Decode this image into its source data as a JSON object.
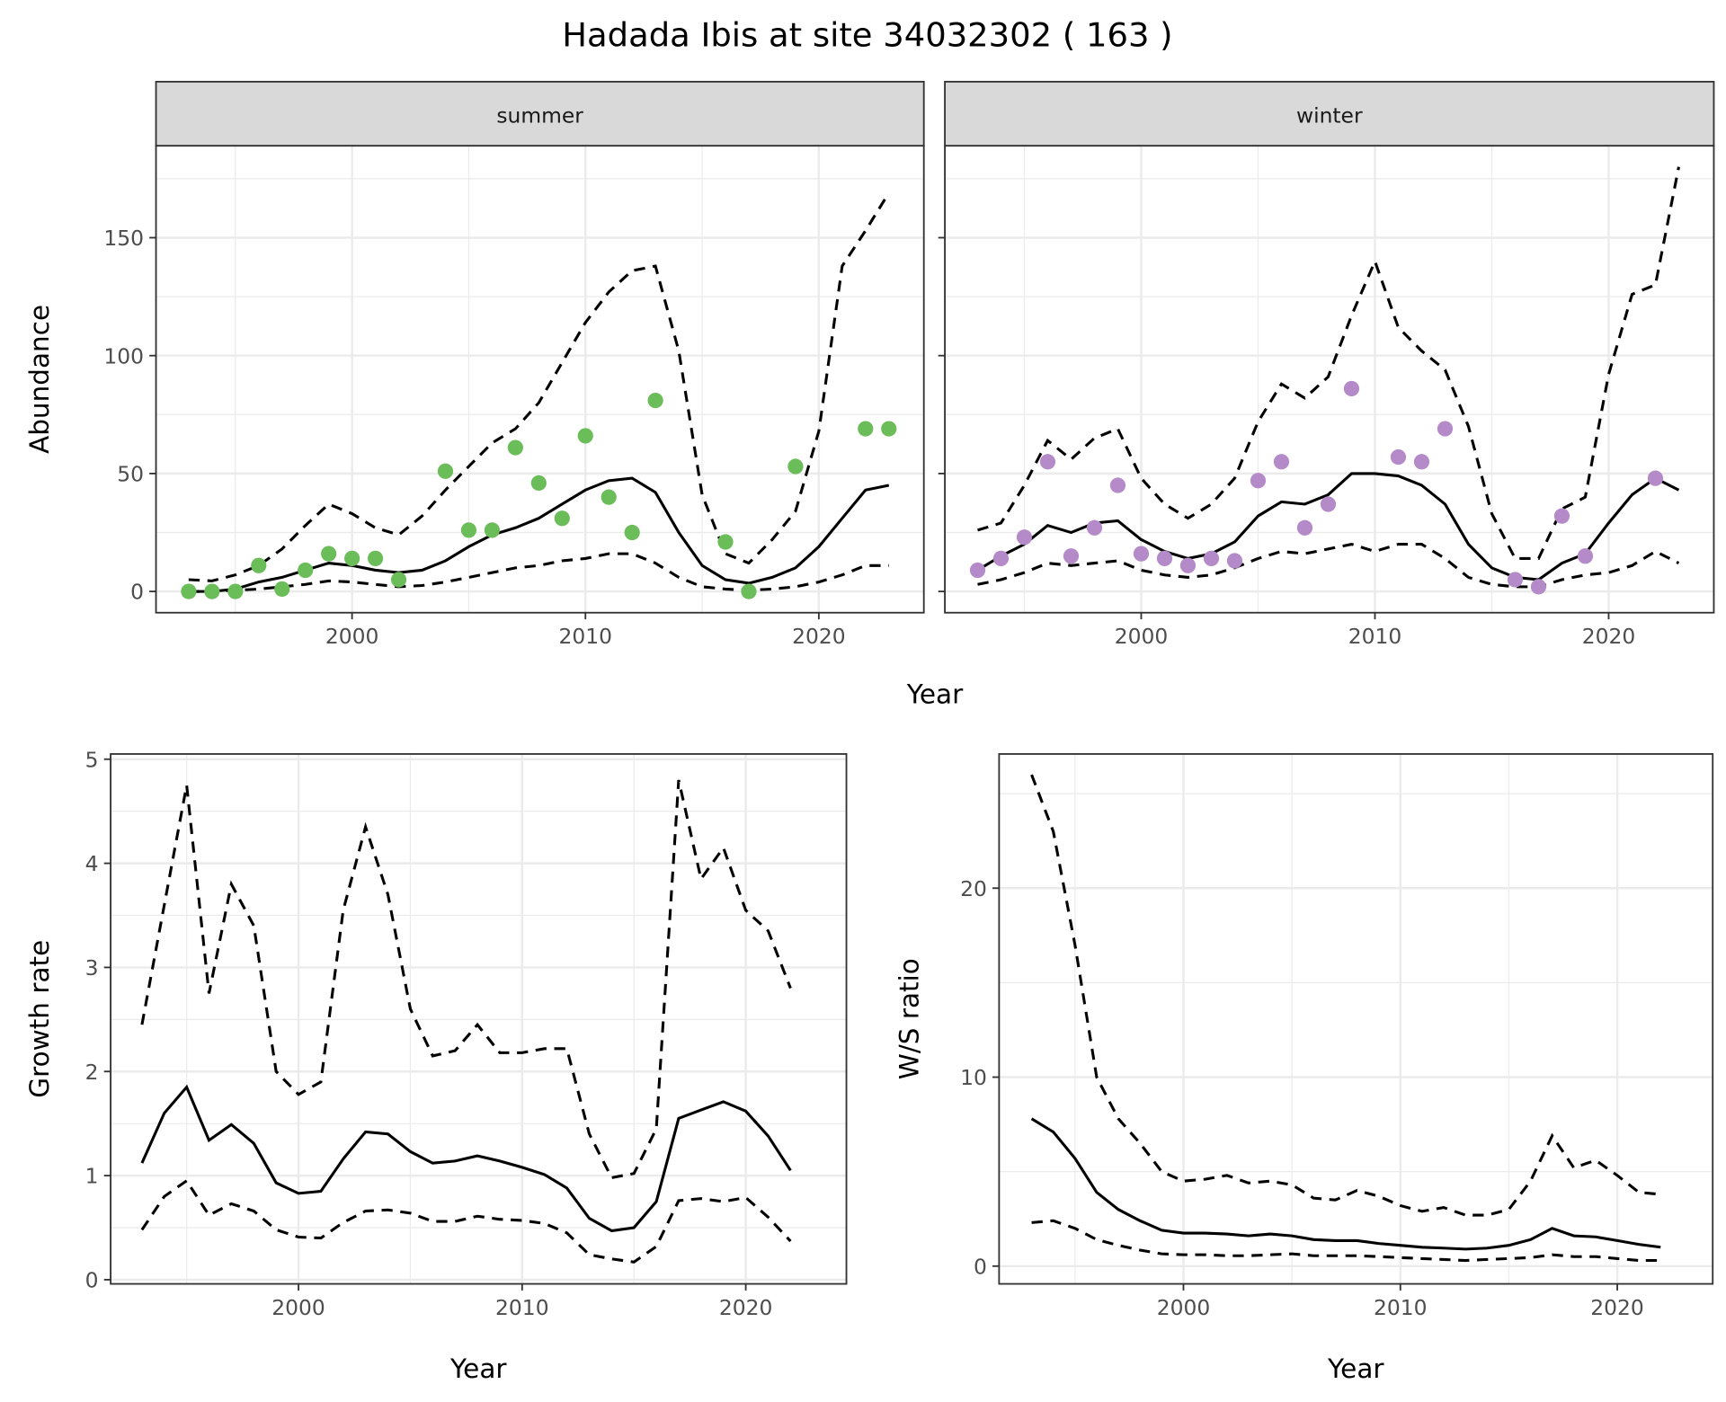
{
  "title": "Hadada Ibis at site 34032302 ( 163 )",
  "colors": {
    "summer_points": "#6bbd5a",
    "winter_points": "#b48ac8",
    "strip_bg": "#d9d9d9",
    "grid": "#ebebeb",
    "line": "#000000"
  },
  "chart_data": [
    {
      "type": "line+scatter",
      "facet": "summer",
      "xlabel": "Year",
      "ylabel": "Abundance",
      "xlim": [
        1991.6,
        2024.5
      ],
      "ylim": [
        -9,
        189
      ],
      "x_ticks": [
        2000,
        2010,
        2020
      ],
      "y_ticks": [
        0,
        50,
        100,
        150
      ],
      "grid": true,
      "points": {
        "x": [
          1993,
          1994,
          1995,
          1996,
          1997,
          1998,
          1999,
          2000,
          2001,
          2002,
          2004,
          2005,
          2006,
          2007,
          2008,
          2009,
          2010,
          2011,
          2012,
          2013,
          2016,
          2017,
          2019,
          2022,
          2023
        ],
        "y": [
          0,
          0,
          0,
          11,
          1,
          9,
          16,
          14,
          14,
          5,
          51,
          26,
          26,
          61,
          46,
          31,
          66,
          40,
          25,
          81,
          21,
          0,
          53,
          69,
          69
        ]
      },
      "years": [
        1993,
        1994,
        1995,
        1996,
        1997,
        1998,
        1999,
        2000,
        2001,
        2002,
        2003,
        2004,
        2005,
        2006,
        2007,
        2008,
        2009,
        2010,
        2011,
        2012,
        2013,
        2014,
        2015,
        2016,
        2017,
        2018,
        2019,
        2020,
        2021,
        2022,
        2023
      ],
      "mean": [
        0,
        0,
        1,
        4,
        6,
        9,
        12,
        11,
        9,
        8,
        9,
        13,
        19,
        24,
        27,
        31,
        37,
        43,
        47,
        48,
        42,
        25,
        11,
        5,
        3.5,
        6,
        10,
        19,
        31,
        43,
        45
      ],
      "upper": [
        5,
        4.5,
        7,
        11,
        18,
        28,
        37,
        33,
        27,
        24,
        32,
        43,
        53,
        63,
        69,
        80,
        97,
        114,
        127,
        136,
        138,
        102,
        41,
        16,
        12,
        22,
        34,
        68,
        138,
        153,
        169
      ],
      "lower": [
        0,
        0,
        0.5,
        1,
        2,
        3,
        4.5,
        4,
        3,
        2,
        2.5,
        4,
        6,
        8,
        10,
        11,
        13,
        14,
        16,
        16,
        12,
        6,
        2,
        1,
        0.5,
        1,
        2,
        4,
        7,
        11,
        11
      ]
    },
    {
      "type": "line+scatter",
      "facet": "winter",
      "xlabel": "Year",
      "ylabel": "Abundance",
      "xlim": [
        1991.6,
        2024.5
      ],
      "ylim": [
        -9,
        189
      ],
      "x_ticks": [
        2000,
        2010,
        2020
      ],
      "y_ticks": [
        0,
        50,
        100,
        150
      ],
      "grid": true,
      "points": {
        "x": [
          1993,
          1994,
          1995,
          1996,
          1997,
          1998,
          1999,
          2000,
          2001,
          2002,
          2003,
          2004,
          2005,
          2006,
          2007,
          2008,
          2009,
          2011,
          2012,
          2013,
          2016,
          2017,
          2018,
          2019,
          2022
        ],
        "y": [
          9,
          14,
          23,
          55,
          15,
          27,
          45,
          16,
          14,
          11,
          14,
          13,
          47,
          55,
          27,
          37,
          86,
          57,
          55,
          69,
          5,
          2,
          32,
          15,
          48
        ]
      },
      "years": [
        1993,
        1994,
        1995,
        1996,
        1997,
        1998,
        1999,
        2000,
        2001,
        2002,
        2003,
        2004,
        2005,
        2006,
        2007,
        2008,
        2009,
        2010,
        2011,
        2012,
        2013,
        2014,
        2015,
        2016,
        2017,
        2018,
        2019,
        2020,
        2021,
        2022,
        2023
      ],
      "mean": [
        9,
        15,
        20,
        28,
        25,
        29,
        30,
        22,
        17,
        14,
        16,
        21,
        32,
        38,
        37,
        41,
        50,
        50,
        49,
        45,
        37,
        20,
        10,
        6,
        5,
        12,
        16,
        29,
        41,
        48,
        43
      ],
      "upper": [
        26,
        29,
        45,
        64,
        56,
        65,
        69,
        48,
        37,
        31,
        37,
        48,
        72,
        88,
        82,
        91,
        117,
        140,
        112,
        102,
        94,
        70,
        33,
        14,
        14,
        35,
        40,
        92,
        126,
        130,
        180
      ],
      "lower": [
        3,
        5,
        8,
        12,
        11,
        12,
        13,
        9,
        7,
        6,
        7,
        10,
        14,
        17,
        16,
        18,
        20,
        17,
        20,
        20,
        14,
        6,
        3,
        2,
        2,
        5,
        7,
        8,
        11,
        17,
        12
      ]
    },
    {
      "type": "line",
      "xlabel": "Year",
      "ylabel": "Growth rate",
      "xlim": [
        1991.6,
        2024.5
      ],
      "ylim": [
        -0.04,
        5.05
      ],
      "x_ticks": [
        2000,
        2010,
        2020
      ],
      "y_ticks": [
        0,
        1,
        2,
        3,
        4,
        5
      ],
      "grid": true,
      "years": [
        1993,
        1994,
        1995,
        1996,
        1997,
        1998,
        1999,
        2000,
        2001,
        2002,
        2003,
        2004,
        2005,
        2006,
        2007,
        2008,
        2009,
        2010,
        2011,
        2012,
        2013,
        2014,
        2015,
        2016,
        2017,
        2018,
        2019,
        2020,
        2021,
        2022
      ],
      "mean": [
        1.12,
        1.6,
        1.85,
        1.34,
        1.49,
        1.31,
        0.93,
        0.83,
        0.85,
        1.16,
        1.42,
        1.4,
        1.23,
        1.12,
        1.14,
        1.19,
        1.14,
        1.08,
        1.01,
        0.88,
        0.59,
        0.47,
        0.5,
        0.75,
        1.55,
        1.63,
        1.71,
        1.62,
        1.38,
        1.05
      ],
      "upper": [
        2.45,
        3.6,
        4.75,
        2.75,
        3.8,
        3.4,
        2.0,
        1.78,
        1.9,
        3.55,
        4.35,
        3.7,
        2.6,
        2.15,
        2.2,
        2.45,
        2.18,
        2.18,
        2.22,
        2.22,
        1.4,
        0.98,
        1.02,
        1.45,
        4.8,
        3.85,
        4.15,
        3.55,
        3.35,
        2.8
      ],
      "lower": [
        0.48,
        0.8,
        0.95,
        0.62,
        0.73,
        0.66,
        0.48,
        0.41,
        0.4,
        0.55,
        0.66,
        0.67,
        0.64,
        0.56,
        0.56,
        0.61,
        0.58,
        0.57,
        0.54,
        0.45,
        0.24,
        0.2,
        0.17,
        0.32,
        0.76,
        0.78,
        0.75,
        0.79,
        0.6,
        0.37
      ]
    },
    {
      "type": "line",
      "xlabel": "Year",
      "ylabel": "W/S ratio",
      "xlim": [
        1991.5,
        2024.4
      ],
      "ylim": [
        -0.94,
        27.1
      ],
      "x_ticks": [
        2000,
        2010,
        2020
      ],
      "y_ticks": [
        0,
        10,
        20
      ],
      "grid": true,
      "years": [
        1993,
        1994,
        1995,
        1996,
        1997,
        1998,
        1999,
        2000,
        2001,
        2002,
        2003,
        2004,
        2005,
        2006,
        2007,
        2008,
        2009,
        2010,
        2011,
        2012,
        2013,
        2014,
        2015,
        2016,
        2017,
        2018,
        2019,
        2020,
        2021,
        2022
      ],
      "mean": [
        7.8,
        7.1,
        5.7,
        3.9,
        3.0,
        2.4,
        1.9,
        1.75,
        1.75,
        1.7,
        1.6,
        1.7,
        1.6,
        1.4,
        1.35,
        1.35,
        1.2,
        1.1,
        1.0,
        0.95,
        0.9,
        0.95,
        1.1,
        1.4,
        2.0,
        1.6,
        1.55,
        1.35,
        1.15,
        1.0
      ],
      "upper": [
        26,
        23,
        17,
        10,
        7.8,
        6.5,
        5.0,
        4.5,
        4.6,
        4.8,
        4.4,
        4.5,
        4.3,
        3.6,
        3.5,
        4.0,
        3.7,
        3.2,
        2.9,
        3.1,
        2.7,
        2.7,
        3.0,
        4.5,
        6.9,
        5.2,
        5.6,
        4.8,
        3.9,
        3.8
      ],
      "lower": [
        2.3,
        2.4,
        2.0,
        1.4,
        1.1,
        0.85,
        0.65,
        0.6,
        0.6,
        0.55,
        0.55,
        0.6,
        0.65,
        0.55,
        0.55,
        0.55,
        0.5,
        0.45,
        0.4,
        0.35,
        0.3,
        0.35,
        0.4,
        0.45,
        0.6,
        0.5,
        0.5,
        0.4,
        0.3,
        0.3
      ]
    }
  ]
}
